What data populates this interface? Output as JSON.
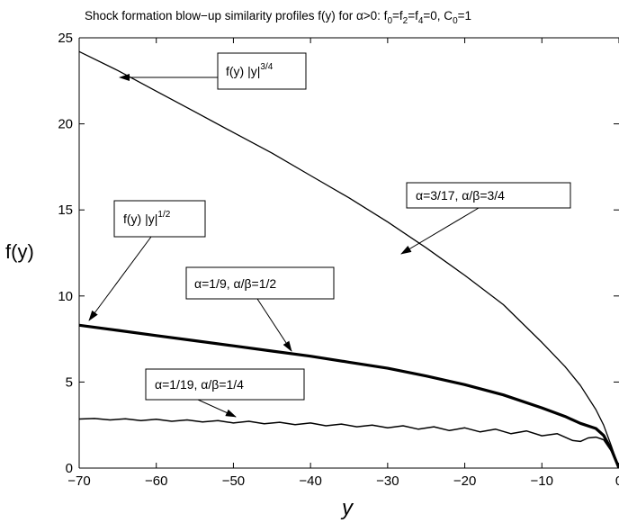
{
  "chart_data": {
    "type": "line",
    "title_parts": {
      "prefix": "Shock formation blow−up similarity profiles f(y) for α>0: f",
      "sub0": "0",
      "eq1": "=f",
      "sub2": "2",
      "eq2": "=f",
      "sub4": "4",
      "eq3": "=0, C",
      "subC": "0",
      "tail": "=1"
    },
    "xlabel": "y",
    "ylabel": "f(y)",
    "xlim": [
      -70,
      0
    ],
    "ylim": [
      0,
      25
    ],
    "xticks": [
      -70,
      -60,
      -50,
      -40,
      -30,
      -20,
      -10,
      0
    ],
    "xtick_labels": [
      "−70",
      "−60",
      "−50",
      "−40",
      "−30",
      "−20",
      "−10",
      "0"
    ],
    "yticks": [
      0,
      5,
      10,
      15,
      20,
      25
    ],
    "ytick_labels": [
      "0",
      "5",
      "10",
      "15",
      "20",
      "25"
    ],
    "grid": false,
    "series": [
      {
        "name": "α=3/17, α/β=3/4",
        "line_width": "thin",
        "x": [
          -70,
          -65,
          -60,
          -55,
          -50,
          -45,
          -40,
          -35,
          -30,
          -25,
          -20,
          -15,
          -10,
          -7,
          -5,
          -3,
          -2,
          -1,
          0
        ],
        "y": [
          24.2,
          23.1,
          21.9,
          20.7,
          19.5,
          18.3,
          17.0,
          15.7,
          14.3,
          12.8,
          11.2,
          9.5,
          7.3,
          5.9,
          4.8,
          3.4,
          2.5,
          1.3,
          0
        ]
      },
      {
        "name": "α=1/9, α/β=1/2",
        "line_width": "thick",
        "x": [
          -70,
          -65,
          -60,
          -55,
          -50,
          -45,
          -40,
          -35,
          -30,
          -25,
          -20,
          -15,
          -10,
          -7,
          -5,
          -3,
          -2,
          -1,
          0
        ],
        "y": [
          8.3,
          8.0,
          7.7,
          7.4,
          7.1,
          6.8,
          6.5,
          6.15,
          5.8,
          5.35,
          4.85,
          4.25,
          3.5,
          3.0,
          2.6,
          2.3,
          1.9,
          1.1,
          0
        ]
      },
      {
        "name": "α=1/19, α/β=1/4",
        "line_width": "medium",
        "x": [
          -70,
          -68,
          -66,
          -64,
          -62,
          -60,
          -58,
          -56,
          -54,
          -52,
          -50,
          -48,
          -46,
          -44,
          -42,
          -40,
          -38,
          -36,
          -34,
          -32,
          -30,
          -28,
          -26,
          -24,
          -22,
          -20,
          -18,
          -16,
          -14,
          -12,
          -10,
          -8,
          -6,
          -5,
          -4,
          -3,
          -2,
          -1,
          0
        ],
        "y": [
          2.85,
          2.88,
          2.8,
          2.86,
          2.76,
          2.84,
          2.72,
          2.8,
          2.68,
          2.76,
          2.62,
          2.72,
          2.58,
          2.66,
          2.52,
          2.62,
          2.46,
          2.56,
          2.4,
          2.5,
          2.34,
          2.46,
          2.26,
          2.4,
          2.18,
          2.34,
          2.1,
          2.26,
          2.0,
          2.16,
          1.88,
          2.0,
          1.6,
          1.55,
          1.75,
          1.8,
          1.65,
          1.0,
          0
        ]
      }
    ],
    "annotations": [
      {
        "text": "f(y)  |y|",
        "sup": "3/4"
      },
      {
        "text": "α=3/17, α/β=3/4"
      },
      {
        "text": "f(y)  |y|",
        "sup": "1/2"
      },
      {
        "text": "α=1/9, α/β=1/2"
      },
      {
        "text": "α=1/19, α/β=1/4"
      }
    ]
  }
}
